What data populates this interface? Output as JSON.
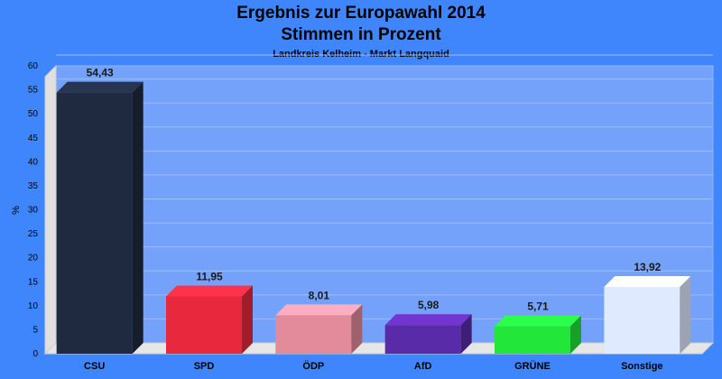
{
  "chart_data": {
    "type": "bar",
    "title": "Ergebnis zur Europawahl 2014",
    "subtitle": "Stimmen in Prozent",
    "subsubtitle": "Landkreis Kelheim - Markt Langquaid",
    "ylabel": "%",
    "xlabel": "",
    "ylim": [
      0,
      60
    ],
    "yticks": [
      0,
      5,
      10,
      15,
      20,
      25,
      30,
      35,
      40,
      45,
      50,
      55,
      60
    ],
    "grid": true,
    "categories": [
      "CSU",
      "SPD",
      "ÖDP",
      "AfD",
      "GRÜNE",
      "Sonstige"
    ],
    "values": [
      54.43,
      11.95,
      8.01,
      5.98,
      5.71,
      13.92
    ],
    "value_labels": [
      "54,43",
      "11,95",
      "8,01",
      "5,98",
      "5,71",
      "13,92"
    ],
    "colors": [
      "#1f2a40",
      "#e8283c",
      "#e38b9a",
      "#5a2ba8",
      "#22e63a",
      "#dfe9ff"
    ]
  }
}
